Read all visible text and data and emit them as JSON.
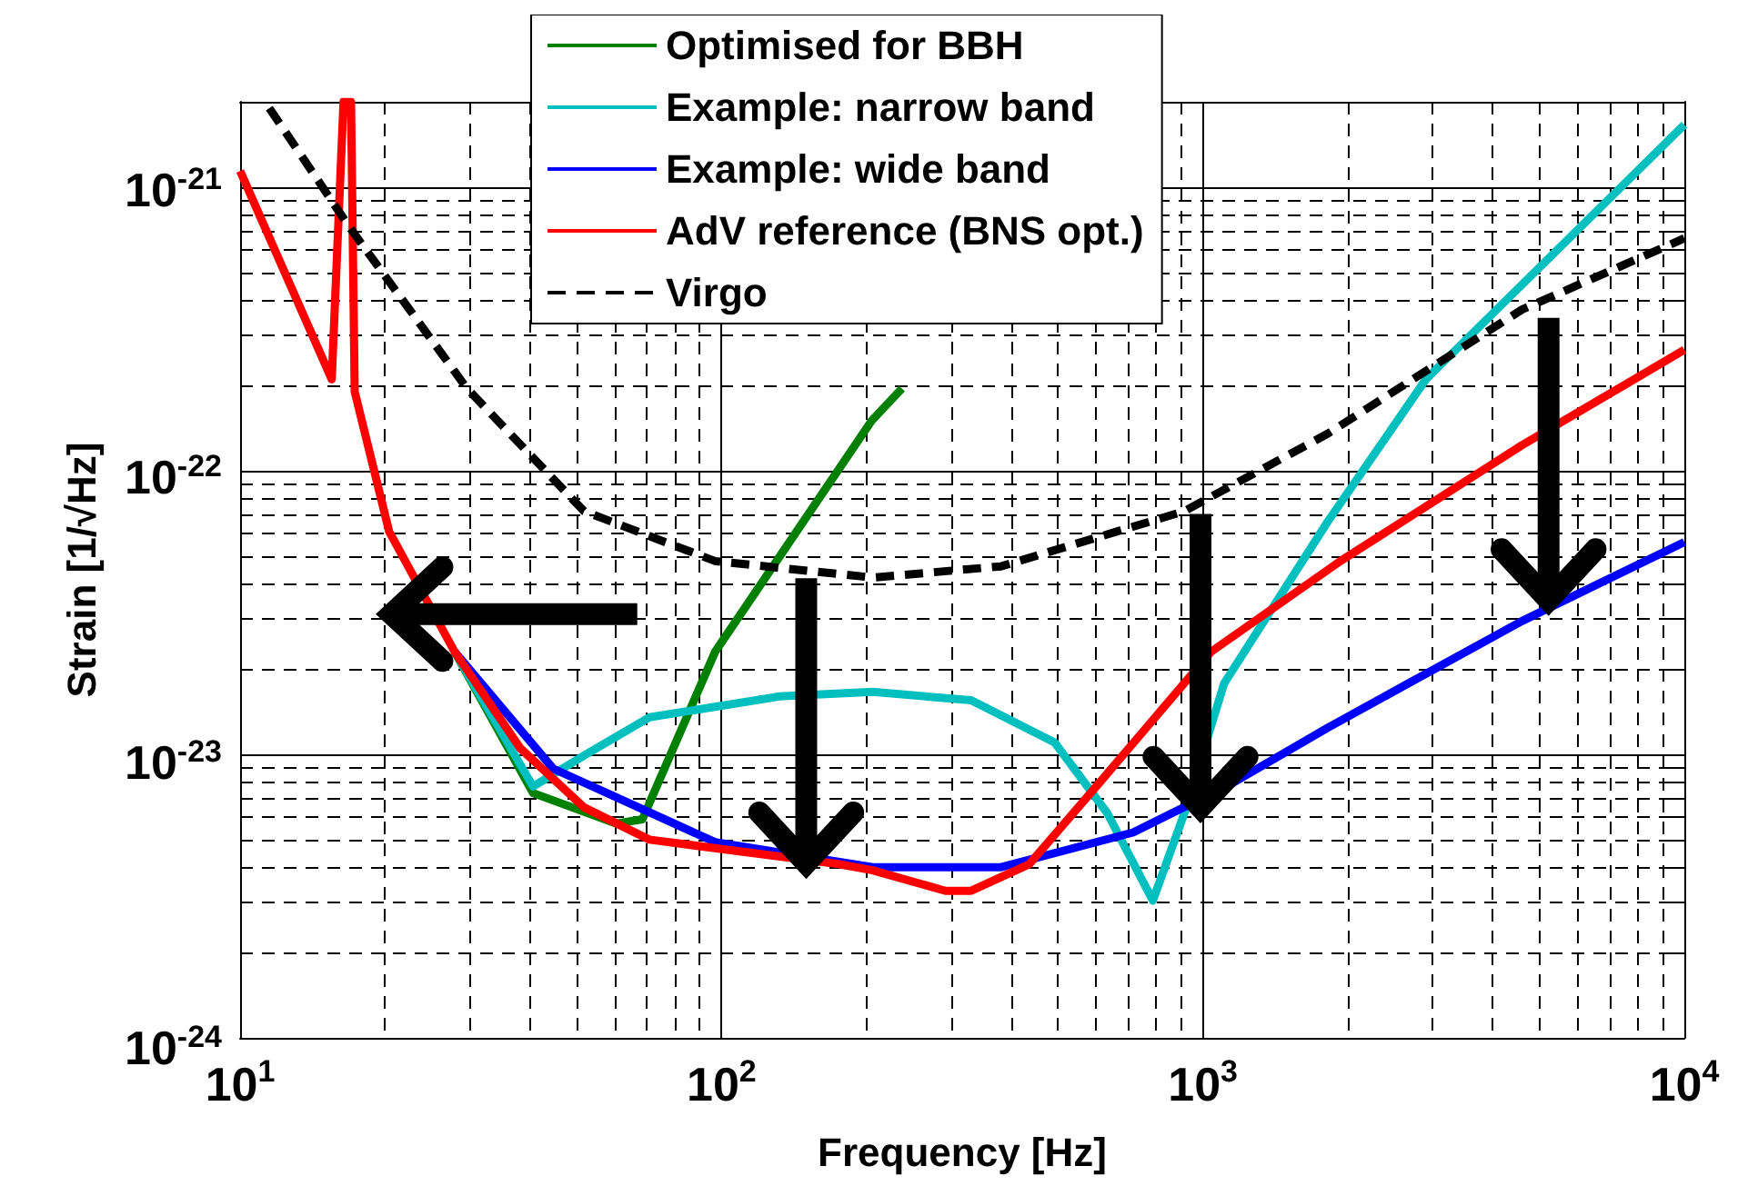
{
  "chart_data": {
    "type": "line",
    "xlabel": "Frequency [Hz]",
    "ylabel": "Strain [1/√Hz]",
    "log": "xy",
    "xlim": [
      10,
      10000
    ],
    "ylim": [
      1e-24,
      2e-21
    ],
    "xticks": [
      {
        "value": 10,
        "label": "10$^{1}$"
      },
      {
        "value": 20,
        "label": null
      },
      {
        "value": 30,
        "label": null
      },
      {
        "value": 40,
        "label": null
      },
      {
        "value": 50,
        "label": null
      },
      {
        "value": 60,
        "label": null
      },
      {
        "value": 70,
        "label": null
      },
      {
        "value": 80,
        "label": null
      },
      {
        "value": 90,
        "label": null
      },
      {
        "value": 100,
        "label": "10$^{2}$"
      },
      {
        "value": 200,
        "label": null
      },
      {
        "value": 300,
        "label": null
      },
      {
        "value": 400,
        "label": null
      },
      {
        "value": 500,
        "label": null
      },
      {
        "value": 600,
        "label": null
      },
      {
        "value": 700,
        "label": null
      },
      {
        "value": 800,
        "label": null
      },
      {
        "value": 900,
        "label": null
      },
      {
        "value": 1000,
        "label": "10$^{3}$"
      },
      {
        "value": 2000,
        "label": null
      },
      {
        "value": 3000,
        "label": null
      },
      {
        "value": 4000,
        "label": null
      },
      {
        "value": 5000,
        "label": null
      },
      {
        "value": 6000,
        "label": null
      },
      {
        "value": 7000,
        "label": null
      },
      {
        "value": 8000,
        "label": null
      },
      {
        "value": 9000,
        "label": null
      },
      {
        "value": 10000,
        "label": "10$^{4}$"
      }
    ],
    "yticks": [
      {
        "value": 1e-24,
        "label": "10$^{-24}$"
      },
      {
        "value": 2e-24,
        "label": null
      },
      {
        "value": 3e-24,
        "label": null
      },
      {
        "value": 4e-24,
        "label": null
      },
      {
        "value": 5e-24,
        "label": null
      },
      {
        "value": 6e-24,
        "label": null
      },
      {
        "value": 7e-24,
        "label": null
      },
      {
        "value": 8e-24,
        "label": null
      },
      {
        "value": 9e-24,
        "label": null
      },
      {
        "value": 1e-23,
        "label": "10$^{-23}$"
      },
      {
        "value": 2e-23,
        "label": null
      },
      {
        "value": 3e-23,
        "label": null
      },
      {
        "value": 4e-23,
        "label": null
      },
      {
        "value": 5e-23,
        "label": null
      },
      {
        "value": 6e-23,
        "label": null
      },
      {
        "value": 7e-23,
        "label": null
      },
      {
        "value": 8e-23,
        "label": null
      },
      {
        "value": 9e-23,
        "label": null
      },
      {
        "value": 1e-22,
        "label": "10$^{-22}$"
      },
      {
        "value": 2e-22,
        "label": null
      },
      {
        "value": 3e-22,
        "label": null
      },
      {
        "value": 4e-22,
        "label": null
      },
      {
        "value": 5e-22,
        "label": null
      },
      {
        "value": 6e-22,
        "label": null
      },
      {
        "value": 7e-22,
        "label": null
      },
      {
        "value": 8e-22,
        "label": null
      },
      {
        "value": 9e-22,
        "label": null
      },
      {
        "value": 1e-21,
        "label": "10$^{-21}$"
      },
      {
        "value": 2e-21,
        "label": null
      }
    ],
    "grid": true,
    "legend": "top",
    "marker": "none",
    "series": [
      {
        "name": "Optimised for BBH",
        "color": "#008000",
        "x": [
          27.9,
          40.6,
          60.5,
          68.5,
          97,
          205,
          237
        ],
        "values": [
          2.3e-23,
          7.3e-24,
          5.7e-24,
          5.9e-24,
          2.3e-23,
          1.5e-22,
          1.95e-22
        ]
      },
      {
        "name": "Example: narrow band",
        "color": "#00bfbf",
        "x": [
          27.9,
          40.6,
          51.8,
          70.8,
          132,
          206,
          330,
          492,
          633,
          787,
          915,
          1107,
          1815,
          2905,
          10000
        ],
        "values": [
          2.3e-23,
          7.7e-24,
          9.9e-24,
          1.35e-23,
          1.6e-23,
          1.66e-23,
          1.55e-23,
          1.1e-23,
          6.2e-24,
          3.05e-24,
          6.2e-24,
          1.78e-23,
          6.6e-23,
          2.1e-22,
          1.66e-21
        ]
      },
      {
        "name": "Example: wide band",
        "color": "#0000ff",
        "x": [
          27.9,
          44.7,
          97,
          206,
          381,
          716,
          1150,
          1815,
          4600,
          10000
        ],
        "values": [
          2.3e-23,
          8.9e-24,
          4.9e-24,
          4e-24,
          4e-24,
          5.3e-24,
          7.9e-24,
          1.24e-23,
          2.95e-23,
          5.6e-23
        ]
      },
      {
        "name": "AdV reference (BNS opt.)",
        "color": "#ff0000",
        "x": [
          10,
          15.5,
          16.4,
          17.0,
          17.3,
          20.4,
          27.9,
          38.2,
          51.8,
          70.8,
          175,
          206,
          292,
          330,
          436,
          612,
          1040,
          1930,
          4600,
          10000
        ],
        "values": [
          1.14e-21,
          2.1e-22,
          2e-21,
          2e-21,
          1.9e-22,
          6.1e-23,
          2.3e-23,
          1.05e-23,
          6.5e-24,
          5e-24,
          4.1e-24,
          3.9e-24,
          3.3e-24,
          3.3e-24,
          4.1e-24,
          8e-24,
          2.3e-23,
          4.8e-23,
          1.23e-22,
          2.67e-22
        ]
      },
      {
        "name": "Virgo",
        "color": "#000000",
        "line_style": "dashed",
        "x": [
          11.5,
          16.9,
          29.6,
          51.8,
          97,
          206,
          381,
          915,
          1815,
          4600,
          10000
        ],
        "values": [
          1.9e-21,
          7.2e-22,
          1.95e-22,
          7.2e-23,
          4.8e-23,
          4.2e-23,
          4.6e-23,
          7.2e-23,
          1.35e-22,
          3.7e-22,
          6.6e-22
        ]
      }
    ]
  }
}
